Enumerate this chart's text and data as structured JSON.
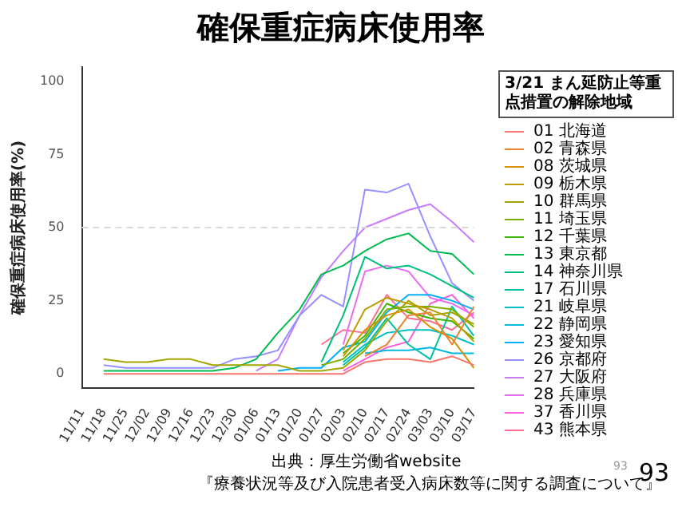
{
  "chart_data": {
    "type": "line",
    "title": "確保重症病床使用率",
    "ylabel": "確保重症病床使用率(%)",
    "legend_title": "3/21 まん延防止等重点措置の解除地域",
    "legend": "right",
    "grid": false,
    "categories": [
      "11/11",
      "11/18",
      "11/25",
      "12/02",
      "12/09",
      "12/16",
      "12/23",
      "12/30",
      "01/06",
      "01/13",
      "01/20",
      "01/27",
      "02/03",
      "02/10",
      "02/17",
      "02/24",
      "03/03",
      "03/10",
      "03/17"
    ],
    "ylim": [
      -5,
      105
    ],
    "yticks": [
      0,
      25,
      50,
      75,
      100
    ],
    "ref_lines": [
      {
        "axis": "y",
        "value": 50,
        "color": "#d9d9d9",
        "line_style": "dashed"
      }
    ],
    "series": [
      {
        "name": "01 北海道",
        "color": "#f8766d",
        "values": [
          null,
          0,
          0,
          0,
          0,
          0,
          0,
          0,
          0,
          0,
          0,
          0,
          0,
          4,
          5,
          5,
          4,
          6,
          3
        ]
      },
      {
        "name": "02 青森県",
        "color": "#ea8331",
        "values": [
          null,
          null,
          null,
          null,
          null,
          null,
          null,
          null,
          null,
          null,
          null,
          null,
          null,
          6,
          10,
          20,
          21,
          10,
          23
        ]
      },
      {
        "name": "08 茨城県",
        "color": "#d89000",
        "values": [
          null,
          null,
          null,
          null,
          null,
          null,
          null,
          null,
          null,
          null,
          null,
          null,
          6,
          15,
          20,
          22,
          16,
          12,
          2
        ]
      },
      {
        "name": "09 栃木県",
        "color": "#c09b00",
        "values": [
          null,
          null,
          null,
          null,
          null,
          null,
          null,
          null,
          null,
          null,
          null,
          null,
          8,
          22,
          26,
          24,
          22,
          19,
          11
        ]
      },
      {
        "name": "10 群馬県",
        "color": "#a3a500",
        "values": [
          null,
          5,
          4,
          4,
          5,
          5,
          3,
          3,
          3,
          3,
          1,
          1,
          2,
          8,
          18,
          25,
          20,
          21,
          17
        ]
      },
      {
        "name": "11 埼玉県",
        "color": "#7cae00",
        "values": [
          null,
          null,
          null,
          null,
          null,
          null,
          null,
          null,
          null,
          null,
          null,
          3,
          5,
          12,
          22,
          23,
          23,
          22,
          16
        ]
      },
      {
        "name": "12 千葉県",
        "color": "#39b600",
        "values": [
          null,
          null,
          null,
          null,
          null,
          null,
          null,
          null,
          null,
          null,
          null,
          null,
          7,
          13,
          24,
          21,
          19,
          18,
          12
        ]
      },
      {
        "name": "13 東京都",
        "color": "#00bb4e",
        "values": [
          null,
          1,
          1,
          1,
          1,
          1,
          1,
          2,
          5,
          14,
          22,
          34,
          37,
          42,
          46,
          48,
          42,
          41,
          34
        ]
      },
      {
        "name": "14 神奈川県",
        "color": "#00bf7d",
        "values": [
          null,
          null,
          null,
          null,
          null,
          null,
          null,
          null,
          null,
          null,
          null,
          4,
          20,
          40,
          36,
          37,
          34,
          30,
          26
        ]
      },
      {
        "name": "17 石川県",
        "color": "#00c1a3",
        "values": [
          null,
          null,
          null,
          null,
          null,
          null,
          null,
          null,
          null,
          null,
          null,
          null,
          3,
          9,
          19,
          10,
          5,
          23,
          13
        ]
      },
      {
        "name": "21 岐阜県",
        "color": "#00bfc4",
        "values": [
          null,
          null,
          null,
          null,
          null,
          null,
          null,
          null,
          null,
          null,
          null,
          null,
          4,
          10,
          14,
          15,
          15,
          13,
          10
        ]
      },
      {
        "name": "22 静岡県",
        "color": "#00bae0",
        "values": [
          null,
          null,
          null,
          null,
          null,
          null,
          null,
          null,
          null,
          null,
          null,
          null,
          null,
          7,
          8,
          8,
          9,
          7,
          7
        ]
      },
      {
        "name": "23 愛知県",
        "color": "#00b0f6",
        "values": [
          null,
          null,
          null,
          null,
          null,
          null,
          null,
          null,
          null,
          1,
          2,
          2,
          9,
          11,
          21,
          27,
          27,
          25,
          22
        ]
      },
      {
        "name": "26 京都府",
        "color": "#9590ff",
        "values": [
          null,
          3,
          2,
          2,
          2,
          2,
          2,
          5,
          6,
          8,
          20,
          27,
          23,
          63,
          62,
          65,
          47,
          31,
          25
        ]
      },
      {
        "name": "27 大阪府",
        "color": "#c77cff",
        "values": [
          null,
          null,
          null,
          null,
          null,
          null,
          null,
          null,
          1,
          5,
          20,
          33,
          42,
          50,
          53,
          56,
          58,
          52,
          45
        ]
      },
      {
        "name": "28 兵庫県",
        "color": "#e76bf3",
        "values": [
          null,
          null,
          null,
          null,
          null,
          null,
          null,
          null,
          null,
          null,
          null,
          null,
          10,
          35,
          37,
          35,
          26,
          24,
          20
        ]
      },
      {
        "name": "37 香川県",
        "color": "#fa62db",
        "values": [
          null,
          null,
          null,
          null,
          null,
          null,
          null,
          null,
          null,
          null,
          null,
          null,
          1,
          5,
          9,
          11,
          24,
          27,
          19
        ]
      },
      {
        "name": "43 熊本県",
        "color": "#ff6c91",
        "values": [
          null,
          null,
          null,
          null,
          null,
          null,
          null,
          null,
          null,
          null,
          null,
          10,
          15,
          14,
          27,
          19,
          18,
          15,
          21
        ]
      }
    ],
    "annotations": [
      "出典：厚生労働省website",
      "『療養状況等及び入院患者受入病床数等に関する調査について』",
      "93",
      "93"
    ]
  }
}
